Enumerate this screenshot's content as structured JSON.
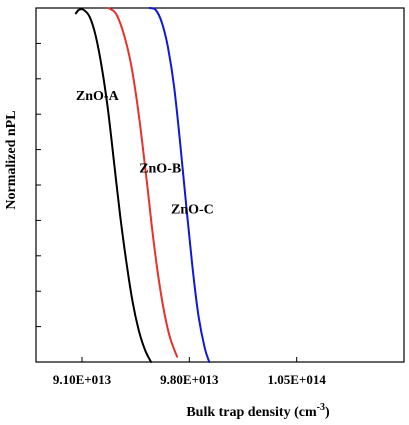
{
  "chart_data": {
    "type": "line",
    "xlabel": "Bulk trap density (cm",
    "xlabel_exponent": "-3",
    "xlabel_close": ")",
    "ylabel": "Normalized nPL",
    "xlim": [
      88000000000000.0,
      112000000000000.0
    ],
    "ylim": [
      0,
      1
    ],
    "x_ticks": [
      {
        "value": 91000000000000.0,
        "label": "9.10E+013"
      },
      {
        "value": 98000000000000.0,
        "label": "9.80E+013"
      },
      {
        "value": 105000000000000.0,
        "label": "1.05E+014"
      }
    ],
    "y_ticks": [
      0.1,
      0.2,
      0.3,
      0.4,
      0.5,
      0.6,
      0.7,
      0.8,
      0.9,
      1.0
    ],
    "grid": false,
    "series": [
      {
        "name": "ZnO-A",
        "color": "#000000",
        "label_at": {
          "x": 92000000000000.0,
          "y": 0.74
        },
        "points": [
          [
            90600000000000.0,
            0.985
          ],
          [
            90800000000000.0,
            0.995
          ],
          [
            91100000000000.0,
            0.995
          ],
          [
            91500000000000.0,
            0.975
          ],
          [
            91900000000000.0,
            0.92
          ],
          [
            92300000000000.0,
            0.83
          ],
          [
            92700000000000.0,
            0.71
          ],
          [
            93100000000000.0,
            0.56
          ],
          [
            93500000000000.0,
            0.41
          ],
          [
            93900000000000.0,
            0.28
          ],
          [
            94300000000000.0,
            0.17
          ],
          [
            94700000000000.0,
            0.09
          ],
          [
            95100000000000.0,
            0.035
          ],
          [
            95500000000000.0,
            0.0
          ]
        ]
      },
      {
        "name": "ZnO-B",
        "color": "#e8312a",
        "label_at": {
          "x": 96100000000000.0,
          "y": 0.535
        },
        "points": [
          [
            92700000000000.0,
            1.0
          ],
          [
            93200000000000.0,
            0.985
          ],
          [
            93700000000000.0,
            0.93
          ],
          [
            94200000000000.0,
            0.84
          ],
          [
            94700000000000.0,
            0.7
          ],
          [
            95200000000000.0,
            0.52
          ],
          [
            95700000000000.0,
            0.33
          ],
          [
            96200000000000.0,
            0.18
          ],
          [
            96700000000000.0,
            0.075
          ],
          [
            97200000000000.0,
            0.015
          ]
        ]
      },
      {
        "name": "ZnO-C",
        "color": "#0f18d8",
        "label_at": {
          "x": 98200000000000.0,
          "y": 0.42
        },
        "points": [
          [
            95400000000000.0,
            1.0
          ],
          [
            95800000000000.0,
            0.995
          ],
          [
            96200000000000.0,
            0.96
          ],
          [
            96600000000000.0,
            0.89
          ],
          [
            97000000000000.0,
            0.78
          ],
          [
            97400000000000.0,
            0.62
          ],
          [
            97800000000000.0,
            0.44
          ],
          [
            98200000000000.0,
            0.27
          ],
          [
            98600000000000.0,
            0.13
          ],
          [
            99000000000000.0,
            0.04
          ],
          [
            99300000000000.0,
            0.0
          ]
        ]
      }
    ]
  }
}
